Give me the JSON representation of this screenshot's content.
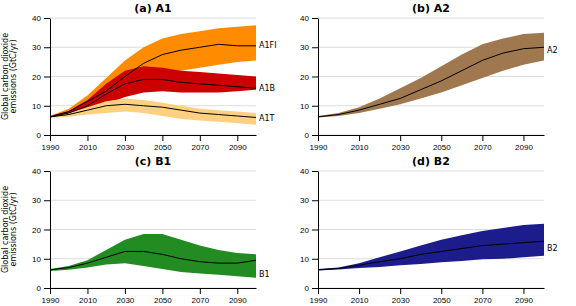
{
  "chart_data": [
    {
      "type": "band",
      "title": "(a) A1",
      "ylabel": "Global carbon dioxide\nemissions (GtC/yr)",
      "x": [
        1990,
        2000,
        2010,
        2020,
        2030,
        2040,
        2050,
        2060,
        2070,
        2080,
        2090,
        2100
      ],
      "xlim": [
        1990,
        2100
      ],
      "xticks": [
        1990,
        2010,
        2030,
        2050,
        2070,
        2090
      ],
      "ylim": [
        0,
        40
      ],
      "yticks": [
        0,
        10,
        20,
        30,
        40
      ],
      "grid": true,
      "color": "#000000",
      "series": [
        {
          "color": "#FF8C00",
          "low": [
            6.0,
            7.0,
            9.0,
            11.5,
            14.5,
            18.0,
            20.5,
            22.0,
            23.0,
            24.0,
            25.0,
            25.5
          ],
          "high": [
            6.5,
            9.0,
            13.5,
            19.5,
            25.5,
            30.0,
            33.0,
            34.5,
            35.5,
            36.5,
            37.0,
            37.5
          ],
          "values": [
            6.2,
            8.0,
            11.5,
            15.0,
            20.0,
            24.5,
            27.5,
            29.0,
            30.0,
            31.0,
            30.5,
            30.5
          ]
        },
        {
          "color": "#CC0000",
          "low": [
            6.0,
            6.8,
            8.5,
            10.5,
            13.0,
            14.5,
            15.0,
            14.5,
            14.5,
            14.5,
            15.0,
            15.5
          ],
          "high": [
            6.5,
            8.2,
            12.0,
            17.5,
            22.0,
            23.5,
            23.0,
            22.0,
            21.5,
            21.0,
            20.5,
            20.0
          ],
          "values": [
            6.2,
            7.5,
            10.0,
            14.0,
            17.5,
            19.0,
            19.0,
            18.0,
            17.5,
            17.0,
            16.5,
            16.0
          ]
        },
        {
          "color": "#FFD080",
          "low": [
            5.8,
            6.2,
            7.0,
            7.5,
            8.0,
            7.5,
            6.5,
            5.5,
            5.0,
            4.5,
            4.0,
            3.5
          ],
          "high": [
            6.5,
            7.5,
            9.5,
            11.5,
            12.5,
            12.0,
            11.0,
            10.0,
            9.0,
            8.5,
            8.0,
            7.5
          ],
          "values": [
            6.2,
            7.0,
            8.5,
            10.0,
            10.5,
            10.0,
            9.5,
            8.5,
            7.5,
            7.0,
            6.5,
            6.0
          ]
        }
      ],
      "annotations": [
        {
          "text": "A1FI",
          "x": 2100,
          "y": 30.5
        },
        {
          "text": "A1B",
          "x": 2100,
          "y": 16.0
        },
        {
          "text": "A1T",
          "x": 2100,
          "y": 5.5
        }
      ]
    },
    {
      "type": "band",
      "title": "(b) A2",
      "x": [
        1990,
        2000,
        2010,
        2020,
        2030,
        2040,
        2050,
        2060,
        2070,
        2080,
        2090,
        2100
      ],
      "xlim": [
        1990,
        2100
      ],
      "xticks": [
        1990,
        2010,
        2030,
        2050,
        2070,
        2090
      ],
      "ylim": [
        0,
        40
      ],
      "yticks": [
        0,
        10,
        20,
        30,
        40
      ],
      "grid": true,
      "color": "#000000",
      "series": [
        {
          "color": "#A07850",
          "low": [
            6.0,
            6.5,
            7.5,
            9.0,
            10.5,
            12.5,
            14.5,
            17.0,
            19.5,
            22.0,
            24.0,
            25.5
          ],
          "high": [
            6.5,
            7.5,
            9.5,
            12.5,
            16.0,
            19.5,
            23.5,
            27.5,
            31.0,
            33.0,
            34.5,
            35.0
          ],
          "values": [
            6.2,
            7.0,
            8.5,
            10.5,
            12.5,
            15.5,
            18.5,
            22.0,
            25.5,
            28.0,
            29.5,
            30.0
          ]
        }
      ],
      "annotations": [
        {
          "text": "A2",
          "x": 2100,
          "y": 29.0
        }
      ]
    },
    {
      "type": "band",
      "title": "(c) B1",
      "ylabel": "Global carbon dioxide\nemissions (GtC/yr)",
      "x": [
        1990,
        2000,
        2010,
        2020,
        2030,
        2040,
        2050,
        2060,
        2070,
        2080,
        2090,
        2100
      ],
      "xlim": [
        1990,
        2100
      ],
      "xticks": [
        1990,
        2010,
        2030,
        2050,
        2070,
        2090
      ],
      "ylim": [
        0,
        40
      ],
      "yticks": [
        0,
        10,
        20,
        30,
        40
      ],
      "grid": true,
      "color": "#000000",
      "series": [
        {
          "color": "#228B22",
          "low": [
            5.8,
            6.2,
            7.0,
            8.0,
            8.5,
            7.5,
            6.5,
            5.5,
            5.0,
            4.5,
            4.0,
            3.5
          ],
          "high": [
            6.5,
            7.5,
            9.5,
            13.0,
            16.5,
            18.5,
            18.5,
            16.5,
            14.5,
            13.0,
            12.0,
            11.5
          ],
          "values": [
            6.2,
            7.0,
            8.5,
            10.5,
            12.5,
            12.5,
            11.5,
            10.0,
            9.0,
            8.5,
            8.5,
            9.5
          ]
        }
      ],
      "annotations": [
        {
          "text": "B1",
          "x": 2100,
          "y": 4.5
        }
      ]
    },
    {
      "type": "band",
      "title": "(d) B2",
      "x": [
        1990,
        2000,
        2010,
        2020,
        2030,
        2040,
        2050,
        2060,
        2070,
        2080,
        2090,
        2100
      ],
      "xlim": [
        1990,
        2100
      ],
      "xticks": [
        1990,
        2010,
        2030,
        2050,
        2070,
        2090
      ],
      "ylim": [
        0,
        40
      ],
      "yticks": [
        0,
        10,
        20,
        30,
        40
      ],
      "grid": true,
      "color": "#000000",
      "series": [
        {
          "color": "#1C1C8C",
          "low": [
            6.0,
            6.3,
            6.8,
            7.2,
            7.8,
            8.2,
            8.8,
            9.2,
            9.8,
            10.0,
            10.5,
            11.0
          ],
          "high": [
            6.5,
            7.0,
            8.5,
            10.5,
            12.5,
            14.5,
            16.5,
            18.0,
            19.5,
            20.5,
            21.5,
            22.0
          ],
          "values": [
            6.2,
            6.7,
            7.8,
            9.0,
            10.0,
            11.5,
            12.5,
            13.5,
            14.5,
            15.0,
            15.5,
            16.0
          ]
        }
      ],
      "annotations": [
        {
          "text": "B2",
          "x": 2100,
          "y": 13.5
        }
      ]
    }
  ]
}
